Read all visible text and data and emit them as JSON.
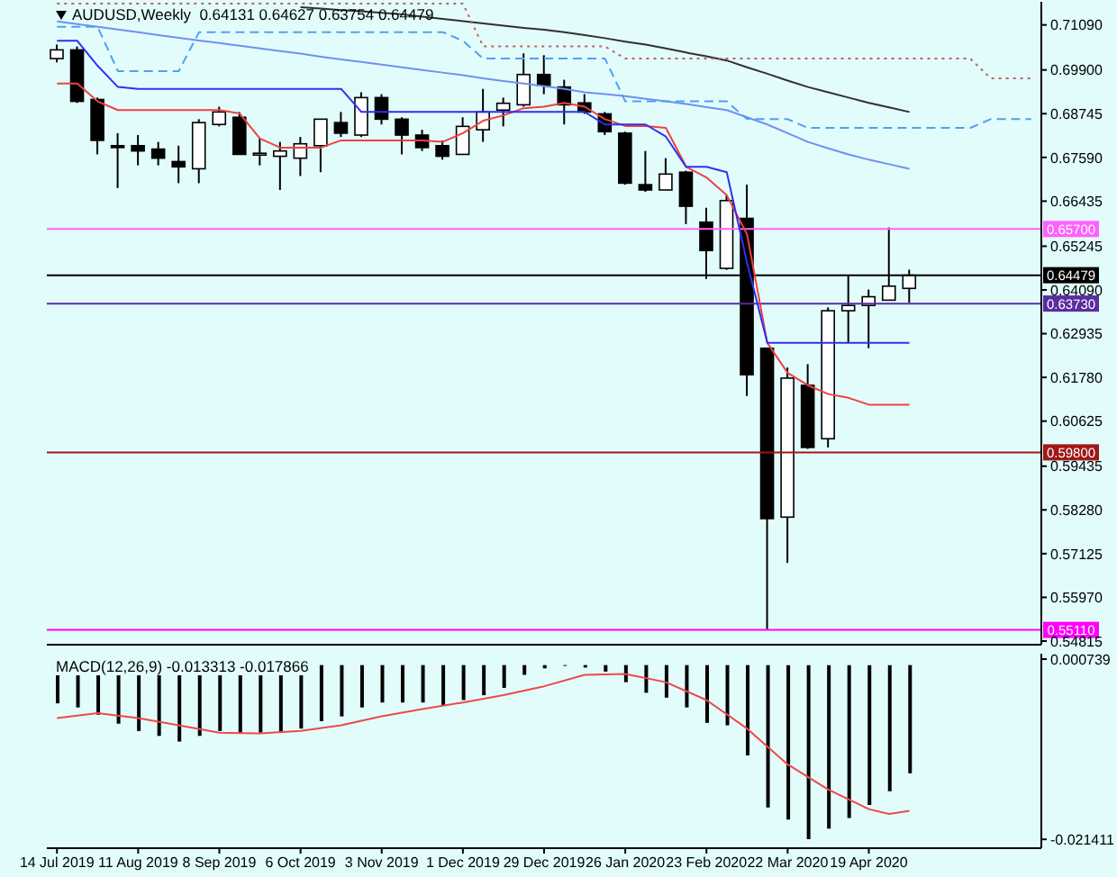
{
  "chart_data": [
    {
      "type": "candlestick",
      "title": "AUDUSD,Weekly  0.64131 0.64627 0.63754 0.64479",
      "tick_labels": "y",
      "ohlc": [
        [
          0.702,
          0.7057,
          0.701,
          0.7043
        ],
        [
          0.7043,
          0.7052,
          0.6903,
          0.6907
        ],
        [
          0.6912,
          0.6917,
          0.6767,
          0.6804
        ],
        [
          0.679,
          0.6823,
          0.6678,
          0.6785
        ],
        [
          0.679,
          0.6818,
          0.6738,
          0.6776
        ],
        [
          0.6781,
          0.68,
          0.6738,
          0.6757
        ],
        [
          0.6748,
          0.679,
          0.6691,
          0.6734
        ],
        [
          0.6729,
          0.686,
          0.6691,
          0.6851
        ],
        [
          0.6846,
          0.6893,
          0.6841,
          0.6879
        ],
        [
          0.6865,
          0.6879,
          0.6767,
          0.6767
        ],
        [
          0.6767,
          0.6809,
          0.6738,
          0.677
        ],
        [
          0.6762,
          0.68,
          0.6673,
          0.6776
        ],
        [
          0.6757,
          0.6813,
          0.671,
          0.6795
        ],
        [
          0.679,
          0.686,
          0.672,
          0.686
        ],
        [
          0.6851,
          0.6879,
          0.6813,
          0.6823
        ],
        [
          0.6818,
          0.6931,
          0.6813,
          0.6917
        ],
        [
          0.6917,
          0.6926,
          0.6846,
          0.686
        ],
        [
          0.686,
          0.6865,
          0.6767,
          0.6818
        ],
        [
          0.6818,
          0.6832,
          0.6776,
          0.6785
        ],
        [
          0.679,
          0.6804,
          0.6753,
          0.6762
        ],
        [
          0.6767,
          0.6865,
          0.6767,
          0.6841
        ],
        [
          0.6832,
          0.694,
          0.68,
          0.6879
        ],
        [
          0.6884,
          0.6917,
          0.6841,
          0.6902
        ],
        [
          0.6898,
          0.7034,
          0.6893,
          0.6978
        ],
        [
          0.6978,
          0.7029,
          0.6926,
          0.6949
        ],
        [
          0.6945,
          0.6964,
          0.6846,
          0.6898
        ],
        [
          0.6903,
          0.6926,
          0.6874,
          0.6879
        ],
        [
          0.6874,
          0.6879,
          0.6818,
          0.6827
        ],
        [
          0.6823,
          0.6827,
          0.6687,
          0.6691
        ],
        [
          0.6687,
          0.6776,
          0.6668,
          0.6673
        ],
        [
          0.6673,
          0.6757,
          0.6673,
          0.6715
        ],
        [
          0.672,
          0.6724,
          0.6583,
          0.663
        ],
        [
          0.6588,
          0.6626,
          0.6438,
          0.6513
        ],
        [
          0.6466,
          0.6659,
          0.6462,
          0.6645
        ],
        [
          0.6598,
          0.6687,
          0.6129,
          0.6185
        ],
        [
          0.6255,
          0.6255,
          0.551,
          0.5805
        ],
        [
          0.5809,
          0.6204,
          0.5688,
          0.6176
        ],
        [
          0.6157,
          0.6213,
          0.5989,
          0.5993
        ],
        [
          0.6016,
          0.6363,
          0.5993,
          0.6354
        ],
        [
          0.6354,
          0.6448,
          0.6269,
          0.6368
        ],
        [
          0.6368,
          0.641,
          0.6255,
          0.6391
        ],
        [
          0.6382,
          0.6574,
          0.6382,
          0.6419
        ],
        [
          0.64131,
          0.64627,
          0.63754,
          0.64479
        ],
        null,
        null,
        null,
        null,
        null,
        null
      ],
      "series": [
        {
          "type": "line",
          "color": "#f04040",
          "values": [
            0.6954,
            0.6954,
            0.6907,
            0.6884,
            0.6884,
            0.6884,
            0.6884,
            0.6884,
            0.6884,
            0.6875,
            0.6809,
            0.6785,
            0.6785,
            0.6785,
            0.6804,
            0.6804,
            0.6804,
            0.6804,
            0.6804,
            0.68,
            0.6823,
            0.6856,
            0.687,
            0.6889,
            0.6893,
            0.6903,
            0.6893,
            0.686,
            0.6842,
            0.6842,
            0.6837,
            0.6734,
            0.6706,
            0.6659,
            0.6556,
            0.6269,
            0.619,
            0.6157,
            0.6134,
            0.6124,
            0.6106,
            0.6106,
            0.6106,
            null,
            null,
            null,
            null,
            null,
            null
          ]
        },
        {
          "type": "line",
          "color": "#3030f0",
          "values": [
            0.7067,
            0.7067,
            0.7001,
            0.6945,
            0.694,
            0.694,
            0.694,
            0.694,
            0.694,
            0.694,
            0.694,
            0.694,
            0.694,
            0.694,
            0.694,
            0.6879,
            0.6879,
            0.6879,
            0.6879,
            0.6879,
            0.6879,
            0.6879,
            0.6879,
            0.6879,
            0.6879,
            0.6879,
            0.6879,
            0.6846,
            0.6846,
            0.6846,
            0.6814,
            0.6734,
            0.6734,
            0.672,
            0.6481,
            0.6269,
            0.6269,
            0.6269,
            0.6269,
            0.6269,
            0.6269,
            0.6269,
            0.6269,
            null,
            null,
            null,
            null,
            null,
            null
          ]
        },
        {
          "type": "line",
          "color": "#7090f0",
          "values": [
            0.7118,
            0.7111,
            0.7104,
            0.7097,
            0.709,
            0.7082,
            0.7075,
            0.7068,
            0.7061,
            0.7054,
            0.7047,
            0.704,
            0.7033,
            0.7025,
            0.7018,
            0.7011,
            0.7004,
            0.6997,
            0.699,
            0.6983,
            0.6976,
            0.6968,
            0.6961,
            0.6954,
            0.6947,
            0.694,
            0.6931,
            0.6926,
            0.6921,
            0.6914,
            0.6907,
            0.69,
            0.6892,
            0.6884,
            0.6865,
            0.6846,
            0.6823,
            0.68,
            0.6783,
            0.6767,
            0.6753,
            0.6741,
            0.6729,
            null,
            null,
            null,
            null,
            null,
            null
          ]
        },
        {
          "type": "line",
          "color": "#303030",
          "values": [
            null,
            null,
            null,
            null,
            null,
            null,
            null,
            null,
            null,
            null,
            null,
            null,
            0.7156,
            0.7152,
            0.7148,
            0.7145,
            0.7141,
            0.7137,
            0.7131,
            0.7125,
            0.7119,
            0.7113,
            0.7107,
            0.7101,
            0.7096,
            0.709,
            0.7082,
            0.7074,
            0.7065,
            0.7057,
            0.7047,
            0.7036,
            0.7026,
            0.7015,
            0.6997,
            0.698,
            0.6962,
            0.6945,
            0.6931,
            0.6917,
            0.6903,
            0.6891,
            0.6879,
            null,
            null,
            null,
            null,
            null,
            null
          ]
        },
        {
          "type": "line",
          "color": "#c06060",
          "line_style": "dotted",
          "values": [
            0.7165,
            0.7165,
            0.7165,
            0.7165,
            0.7165,
            0.7165,
            0.7165,
            0.7165,
            0.7165,
            0.7165,
            0.7165,
            0.7165,
            0.7165,
            0.7165,
            0.7165,
            0.7165,
            0.7165,
            0.7165,
            0.7165,
            0.7165,
            0.7165,
            0.7052,
            0.7052,
            0.7052,
            0.7052,
            0.7052,
            0.7052,
            0.7052,
            0.702,
            0.702,
            0.702,
            0.702,
            0.702,
            0.702,
            0.702,
            0.702,
            0.702,
            0.702,
            0.702,
            0.702,
            0.702,
            0.702,
            0.702,
            0.702,
            0.702,
            0.702,
            0.6968,
            0.6968,
            0.6968
          ]
        },
        {
          "type": "line",
          "color": "#50a0f0",
          "line_style": "dashed",
          "values": [
            0.7104,
            0.7104,
            0.7104,
            0.6987,
            0.6987,
            0.6987,
            0.6987,
            0.709,
            0.709,
            0.709,
            0.709,
            0.709,
            0.709,
            0.709,
            0.709,
            0.709,
            0.709,
            0.709,
            0.709,
            0.709,
            0.7067,
            0.702,
            0.702,
            0.702,
            0.702,
            0.702,
            0.702,
            0.702,
            0.6907,
            0.6907,
            0.6907,
            0.6907,
            0.6907,
            0.6907,
            0.686,
            0.686,
            0.686,
            0.6837,
            0.6837,
            0.6837,
            0.6837,
            0.6837,
            0.6837,
            0.6837,
            0.6837,
            0.6837,
            0.686,
            0.686,
            0.686
          ]
        }
      ],
      "ylim": [
        0.5472,
        0.717
      ],
      "yticks": [
        {
          "value": 0.7109,
          "label": "0.71090"
        },
        {
          "value": 0.699,
          "label": "0.69900"
        },
        {
          "value": 0.68745,
          "label": "0.68745"
        },
        {
          "value": 0.6759,
          "label": "0.67590"
        },
        {
          "value": 0.66435,
          "label": "0.66435"
        },
        {
          "value": 0.65245,
          "label": "0.65245"
        },
        {
          "value": 0.6409,
          "label": "0.64090"
        },
        {
          "value": 0.62935,
          "label": "0.62935"
        },
        {
          "value": 0.6178,
          "label": "0.61780"
        },
        {
          "value": 0.60625,
          "label": "0.60625"
        },
        {
          "value": 0.59435,
          "label": "0.59435"
        },
        {
          "value": 0.5828,
          "label": "0.58280"
        },
        {
          "value": 0.57125,
          "label": "0.57125"
        },
        {
          "value": 0.5597,
          "label": "0.55970"
        },
        {
          "value": 0.54815,
          "label": "0.54815"
        }
      ],
      "ref_lines": [
        {
          "axis": "y",
          "value": 0.657,
          "label": "0.65700",
          "color": "#ff60ff"
        },
        {
          "axis": "y",
          "value": 0.6373,
          "label": "0.63730",
          "color": "#5a2ca0"
        },
        {
          "axis": "y",
          "value": 0.598,
          "label": "0.59800",
          "color": "#a01818"
        },
        {
          "axis": "y",
          "value": 0.5511,
          "label": "0.55110",
          "color": "#ff00ff"
        },
        {
          "axis": "y",
          "value": 0.64479,
          "label": "0.64479",
          "color": "#000000"
        }
      ]
    },
    {
      "type": "bar",
      "title": "MACD(12,26,9) -0.013313 -0.017866",
      "categories": [
        "14 Jul 2019",
        null,
        null,
        null,
        "11 Aug 2019",
        null,
        null,
        null,
        "8 Sep 2019",
        null,
        null,
        null,
        "6 Oct 2019",
        null,
        null,
        null,
        "3 Nov 2019",
        null,
        null,
        null,
        "1 Dec 2019",
        null,
        null,
        null,
        "29 Dec 2019",
        null,
        null,
        null,
        "26 Jan 2020",
        null,
        null,
        null,
        "23 Feb 2020",
        null,
        null,
        null,
        "22 Mar 2020",
        null,
        null,
        null,
        "19 Apr 2020",
        null,
        null,
        null,
        null,
        null,
        null,
        null,
        null
      ],
      "series": [
        {
          "type": "bar",
          "color": "#000000",
          "values": [
            -0.0047,
            -0.0052,
            -0.0061,
            -0.0072,
            -0.0081,
            -0.0087,
            -0.0094,
            -0.0087,
            -0.0081,
            -0.0083,
            -0.0083,
            -0.0083,
            -0.0078,
            -0.0069,
            -0.0063,
            -0.0052,
            -0.0046,
            -0.0046,
            -0.0046,
            -0.0049,
            -0.0043,
            -0.0037,
            -0.0028,
            -0.0012,
            -0.0004,
            -0.0001,
            -0.0003,
            -0.0008,
            -0.0021,
            -0.0034,
            -0.004,
            -0.0052,
            -0.0071,
            -0.0074,
            -0.0111,
            -0.0175,
            -0.019,
            -0.0214,
            -0.0201,
            -0.0188,
            -0.0172,
            -0.0155,
            -0.0133,
            null,
            null,
            null,
            null,
            null,
            null
          ]
        },
        {
          "type": "line",
          "color": "#f04848",
          "values": [
            -0.0065,
            null,
            -0.0059,
            null,
            -0.0065,
            null,
            -0.0074,
            null,
            -0.0083,
            null,
            -0.0084,
            null,
            -0.0081,
            null,
            -0.0074,
            null,
            -0.0063,
            null,
            -0.0054,
            null,
            -0.0046,
            null,
            -0.0037,
            null,
            -0.0026,
            null,
            -0.0012,
            null,
            -0.0011,
            null,
            -0.0021,
            null,
            -0.0043,
            null,
            -0.0078,
            null,
            -0.0122,
            null,
            -0.0153,
            null,
            -0.0177,
            -0.0183,
            -0.0179,
            null,
            null,
            null,
            null,
            null,
            null
          ]
        }
      ],
      "ylim": [
        -0.0225,
        0.0014
      ],
      "yticks": [
        0.000739,
        -0.021411
      ]
    }
  ]
}
